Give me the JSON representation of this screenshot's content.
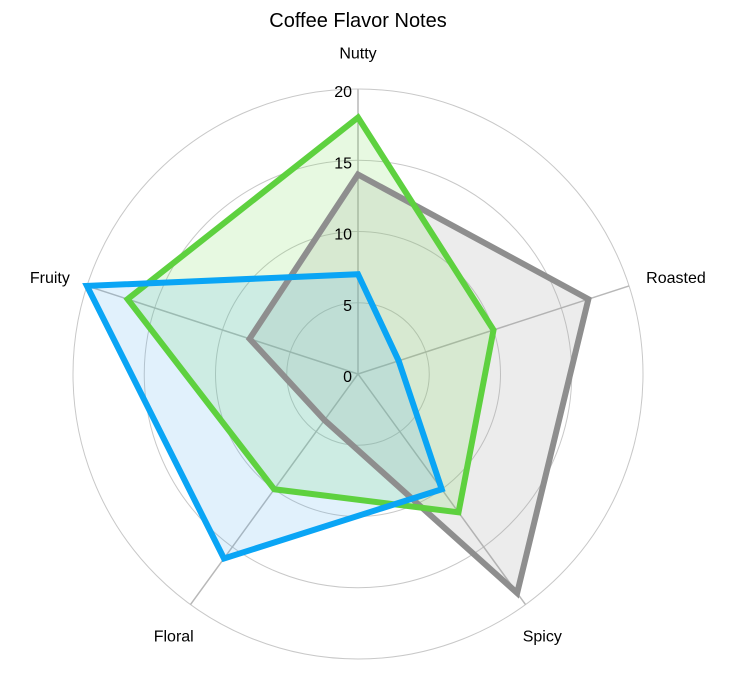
{
  "chart_data": {
    "type": "radar",
    "title": "Coffee Flavor Notes",
    "categories": [
      "Nutty",
      "Roasted",
      "Spicy",
      "Floral",
      "Fruity"
    ],
    "rlim": [
      0,
      20
    ],
    "rticks": [
      "0",
      "5",
      "10",
      "15",
      "20"
    ],
    "grid": true,
    "series": [
      {
        "values": [
          14,
          17,
          19,
          4,
          8
        ],
        "color": "#8e8e8e",
        "fill": "rgba(160,160,160,0.2)"
      },
      {
        "values": [
          18,
          10,
          12,
          10,
          17
        ],
        "color": "#5ed13f",
        "fill": "rgba(120,220,90,0.18)"
      },
      {
        "values": [
          7,
          3,
          10,
          16,
          20
        ],
        "color": "#0aa5f5",
        "fill": "rgba(80,170,240,0.17)"
      }
    ]
  }
}
